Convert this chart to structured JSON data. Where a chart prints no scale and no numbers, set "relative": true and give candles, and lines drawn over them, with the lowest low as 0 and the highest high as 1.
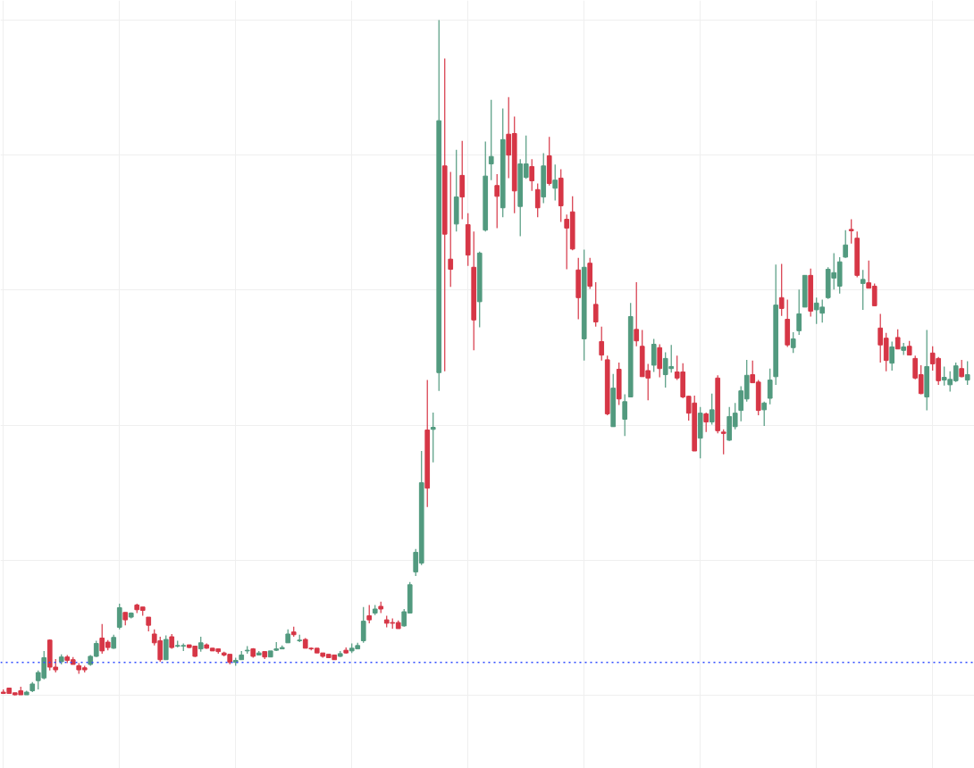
{
  "chart_data": {
    "type": "candlestick",
    "relative": true,
    "grid": true,
    "colors": [
      "#d63646",
      "#d63646",
      "#d63646",
      "#d63646",
      "#529a7f",
      "#529a7f",
      "#529a7f",
      "#529a7f",
      "#d63646",
      "#d63646",
      "#529a7f",
      "#d63646",
      "#d63646",
      "#d63646",
      "#d63646",
      "#529a7f",
      "#529a7f",
      "#d63646",
      "#d63646",
      "#529a7f",
      "#529a7f",
      "#d63646",
      "#529a7f",
      "#d63646",
      "#d63646",
      "#d63646",
      "#d63646",
      "#d63646",
      "#529a7f",
      "#d63646",
      "#529a7f",
      "#529a7f",
      "#d63646",
      "#d63646",
      "#529a7f",
      "#d63646",
      "#d63646",
      "#d63646",
      "#d63646",
      "#d63646",
      "#529a7f",
      "#529a7f",
      "#529a7f",
      "#d63646",
      "#529a7f",
      "#d63646",
      "#529a7f",
      "#529a7f",
      "#529a7f",
      "#529a7f",
      "#d63646",
      "#529a7f",
      "#d63646",
      "#d63646",
      "#d63646",
      "#d63646",
      "#d63646",
      "#d63646",
      "#529a7f",
      "#d63646",
      "#529a7f",
      "#529a7f",
      "#529a7f",
      "#d63646",
      "#529a7f",
      "#d63646",
      "#d63646",
      "#d63646",
      "#d63646",
      "#529a7f",
      "#529a7f",
      "#529a7f",
      "#529a7f",
      "#d63646",
      "#529a7f",
      "#529a7f",
      "#d63646",
      "#d63646",
      "#529a7f",
      "#d63646",
      "#d63646",
      "#d63646",
      "#529a7f",
      "#529a7f",
      "#529a7f",
      "#d63646",
      "#529a7f",
      "#d63646",
      "#d63646",
      "#529a7f",
      "#529a7f",
      "#d63646",
      "#d63646",
      "#529a7f",
      "#d63646",
      "#529a7f",
      "#d63646",
      "#d63646",
      "#d63646",
      "#d63646",
      "#529a7f",
      "#d63646",
      "#d63646",
      "#d63646",
      "#d63646",
      "#529a7f",
      "#d63646",
      "#529a7f",
      "#529a7f",
      "#d63646",
      "#d63646",
      "#d63646",
      "#529a7f",
      "#d63646",
      "#529a7f",
      "#529a7f",
      "#d63646",
      "#d63646",
      "#d63646",
      "#d63646",
      "#529a7f",
      "#d63646",
      "#529a7f",
      "#d63646",
      "#d63646",
      "#529a7f",
      "#529a7f",
      "#529a7f",
      "#529a7f",
      "#d63646",
      "#d63646",
      "#529a7f",
      "#529a7f",
      "#529a7f",
      "#d63646",
      "#d63646",
      "#529a7f",
      "#529a7f",
      "#529a7f",
      "#d63646",
      "#529a7f",
      "#529a7f",
      "#529a7f",
      "#529a7f",
      "#529a7f",
      "#529a7f",
      "#d63646",
      "#d63646",
      "#529a7f",
      "#d63646",
      "#d63646",
      "#d63646",
      "#d63646",
      "#529a7f",
      "#d63646",
      "#529a7f",
      "#d63646",
      "#d63646",
      "#d63646",
      "#529a7f",
      "#d63646",
      "#d63646",
      "#529a7f",
      "#529a7f",
      "#529a7f",
      "#d63646",
      "#529a7f"
    ],
    "categories": [
      null,
      null,
      null,
      null,
      null,
      null,
      null,
      null,
      null,
      null,
      null,
      null,
      null,
      null,
      null,
      null,
      null,
      null,
      null,
      null,
      null,
      null,
      null,
      null,
      null,
      null,
      null,
      null,
      null,
      null,
      null,
      null,
      null,
      null,
      null,
      null,
      null,
      null,
      null,
      null,
      null,
      null,
      null,
      null,
      null,
      null,
      null,
      null,
      null,
      null,
      null,
      null,
      null,
      null,
      null,
      null,
      null,
      null,
      null,
      null,
      null,
      null,
      null,
      null,
      null,
      null,
      null,
      null,
      null,
      null,
      null,
      null,
      null,
      null,
      null,
      null,
      null,
      null,
      null,
      null,
      null,
      null,
      null,
      null,
      null,
      null,
      null,
      null,
      null,
      null,
      null,
      null,
      null,
      null,
      null,
      null,
      null,
      null,
      null,
      null,
      null,
      null,
      null,
      null,
      null,
      null,
      null,
      null,
      null,
      null,
      null,
      null,
      null,
      null,
      null,
      null,
      null,
      null,
      null,
      null,
      null,
      null,
      null,
      null,
      null,
      null,
      null,
      null,
      null,
      null,
      null,
      null,
      null,
      null,
      null,
      null,
      null,
      null,
      null,
      null,
      null,
      null,
      null,
      null,
      null,
      null,
      null,
      null,
      null,
      null,
      null,
      null,
      null,
      null,
      null,
      null,
      null,
      null,
      null,
      null,
      null,
      null,
      null,
      null,
      null,
      null,
      null
    ],
    "ohlc": [
      [
        0.005,
        0.009,
        0.003,
        0.003
      ],
      [
        0.011,
        0.011,
        0.003,
        0.003
      ],
      [
        0.004,
        0.004,
        0,
        0.001
      ],
      [
        0.007,
        0.013,
        0.001,
        0.001
      ],
      [
        0.001,
        0.007,
        0.001,
        0.005
      ],
      [
        0.007,
        0.02,
        0.005,
        0.017
      ],
      [
        0.022,
        0.037,
        0.009,
        0.034
      ],
      [
        0.026,
        0.066,
        0.024,
        0.056
      ],
      [
        0.082,
        0.083,
        0.037,
        0.042
      ],
      [
        0.042,
        0.054,
        0.034,
        0.038
      ],
      [
        0.05,
        0.061,
        0.046,
        0.057
      ],
      [
        0.057,
        0.06,
        0.048,
        0.052
      ],
      [
        0.053,
        0.057,
        0.046,
        0.046
      ],
      [
        0.044,
        0.048,
        0.032,
        0.038
      ],
      [
        0.041,
        0.044,
        0.034,
        0.038
      ],
      [
        0.046,
        0.06,
        0.044,
        0.058
      ],
      [
        0.058,
        0.081,
        0.057,
        0.077
      ],
      [
        0.085,
        0.106,
        0.062,
        0.066
      ],
      [
        0.079,
        0.082,
        0.067,
        0.071
      ],
      [
        0.07,
        0.09,
        0.069,
        0.086
      ],
      [
        0.101,
        0.136,
        0.098,
        0.13
      ],
      [
        0.123,
        0.123,
        0.104,
        0.112
      ],
      [
        0.116,
        0.123,
        0.114,
        0.122
      ],
      [
        0.134,
        0.136,
        0.122,
        0.127
      ],
      [
        0.131,
        0.131,
        0.118,
        0.126
      ],
      [
        0.116,
        0.116,
        0.095,
        0.104
      ],
      [
        0.091,
        0.098,
        0.074,
        0.078
      ],
      [
        0.081,
        0.087,
        0.05,
        0.053
      ],
      [
        0.053,
        0.089,
        0.053,
        0.083
      ],
      [
        0.087,
        0.091,
        0.069,
        0.071
      ],
      [
        0.073,
        0.081,
        0.071,
        0.074
      ],
      [
        0.073,
        0.077,
        0.066,
        0.074
      ],
      [
        0.075,
        0.075,
        0.07,
        0.071
      ],
      [
        0.073,
        0.073,
        0.057,
        0.058
      ],
      [
        0.069,
        0.087,
        0.065,
        0.078
      ],
      [
        0.075,
        0.077,
        0.069,
        0.07
      ],
      [
        0.07,
        0.07,
        0.066,
        0.066
      ],
      [
        0.069,
        0.069,
        0.062,
        0.065
      ],
      [
        0.063,
        0.065,
        0.058,
        0.06
      ],
      [
        0.061,
        0.061,
        0.046,
        0.049
      ],
      [
        0.049,
        0.056,
        0.044,
        0.052
      ],
      [
        0.053,
        0.066,
        0.053,
        0.06
      ],
      [
        0.066,
        0.073,
        0.062,
        0.067
      ],
      [
        0.069,
        0.07,
        0.056,
        0.058
      ],
      [
        0.06,
        0.066,
        0.06,
        0.063
      ],
      [
        0.065,
        0.065,
        0.054,
        0.057
      ],
      [
        0.057,
        0.066,
        0.057,
        0.066
      ],
      [
        0.067,
        0.079,
        0.066,
        0.069
      ],
      [
        0.069,
        0.074,
        0.069,
        0.071
      ],
      [
        0.078,
        0.098,
        0.078,
        0.091
      ],
      [
        0.094,
        0.102,
        0.087,
        0.09
      ],
      [
        0.081,
        0.09,
        0.079,
        0.082
      ],
      [
        0.083,
        0.085,
        0.07,
        0.07
      ],
      [
        0.07,
        0.071,
        0.067,
        0.069
      ],
      [
        0.07,
        0.07,
        0.063,
        0.063
      ],
      [
        0.063,
        0.063,
        0.056,
        0.058
      ],
      [
        0.061,
        0.061,
        0.056,
        0.056
      ],
      [
        0.06,
        0.06,
        0.053,
        0.053
      ],
      [
        0.058,
        0.066,
        0.057,
        0.062
      ],
      [
        0.067,
        0.071,
        0.062,
        0.063
      ],
      [
        0.066,
        0.077,
        0.063,
        0.07
      ],
      [
        0.069,
        0.078,
        0.069,
        0.074
      ],
      [
        0.081,
        0.131,
        0.078,
        0.11
      ],
      [
        0.118,
        0.134,
        0.107,
        0.112
      ],
      [
        0.122,
        0.134,
        0.119,
        0.128
      ],
      [
        0.132,
        0.139,
        0.122,
        0.128
      ],
      [
        0.112,
        0.118,
        0.101,
        0.107
      ],
      [
        0.108,
        0.114,
        0.099,
        0.107
      ],
      [
        0.108,
        0.111,
        0.099,
        0.099
      ],
      [
        0.103,
        0.128,
        0.102,
        0.124
      ],
      [
        0.122,
        0.168,
        0.122,
        0.164
      ],
      [
        0.183,
        0.217,
        0.177,
        0.212
      ],
      [
        0.196,
        0.362,
        0.193,
        0.315
      ],
      [
        0.393,
        0.467,
        0.279,
        0.307
      ],
      [
        0.394,
        0.419,
        0.345,
        0.397
      ],
      [
        0.478,
        1,
        0.451,
        0.851
      ],
      [
        0.784,
        0.943,
        0.48,
        0.683
      ],
      [
        0.646,
        0.775,
        0.605,
        0.631
      ],
      [
        0.698,
        0.808,
        0.687,
        0.738
      ],
      [
        0.77,
        0.821,
        0.705,
        0.738
      ],
      [
        0.697,
        0.714,
        0.636,
        0.652
      ],
      [
        0.634,
        0.687,
        0.511,
        0.556
      ],
      [
        0.583,
        0.657,
        0.545,
        0.655
      ],
      [
        0.689,
        0.82,
        0.687,
        0.769
      ],
      [
        0.787,
        0.882,
        0.763,
        0.798
      ],
      [
        0.755,
        0.772,
        0.692,
        0.739
      ],
      [
        0.722,
        0.869,
        0.708,
        0.823
      ],
      [
        0.831,
        0.886,
        0.766,
        0.8
      ],
      [
        0.832,
        0.857,
        0.714,
        0.747
      ],
      [
        0.724,
        0.794,
        0.68,
        0.787
      ],
      [
        0.767,
        0.829,
        0.765,
        0.787
      ],
      [
        0.783,
        0.794,
        0.747,
        0.762
      ],
      [
        0.749,
        0.758,
        0.708,
        0.722
      ],
      [
        0.738,
        0.803,
        0.729,
        0.784
      ],
      [
        0.799,
        0.827,
        0.755,
        0.758
      ],
      [
        0.751,
        0.786,
        0.733,
        0.763
      ],
      [
        0.766,
        0.779,
        0.701,
        0.725
      ],
      [
        0.705,
        0.712,
        0.631,
        0.692
      ],
      [
        0.716,
        0.739,
        0.659,
        0.661
      ],
      [
        0.63,
        0.648,
        0.557,
        0.589
      ],
      [
        0.528,
        0.66,
        0.496,
        0.634
      ],
      [
        0.64,
        0.648,
        0.602,
        0.606
      ],
      [
        0.579,
        0.612,
        0.546,
        0.553
      ],
      [
        0.524,
        0.546,
        0.496,
        0.504
      ],
      [
        0.497,
        0.503,
        0.415,
        0.417
      ],
      [
        0.398,
        0.476,
        0.398,
        0.455
      ],
      [
        0.483,
        0.493,
        0.43,
        0.439
      ],
      [
        0.409,
        0.446,
        0.384,
        0.435
      ],
      [
        0.442,
        0.581,
        0.442,
        0.561
      ],
      [
        0.542,
        0.612,
        0.517,
        0.525
      ],
      [
        0.517,
        0.541,
        0.472,
        0.472
      ],
      [
        0.481,
        0.491,
        0.437,
        0.47
      ],
      [
        0.489,
        0.528,
        0.479,
        0.52
      ],
      [
        0.515,
        0.52,
        0.471,
        0.484
      ],
      [
        0.475,
        0.508,
        0.456,
        0.499
      ],
      [
        0.484,
        0.519,
        0.478,
        0.487
      ],
      [
        0.479,
        0.503,
        0.467,
        0.47
      ],
      [
        0.479,
        0.492,
        0.44,
        0.442
      ],
      [
        0.443,
        0.444,
        0.407,
        0.418
      ],
      [
        0.433,
        0.444,
        0.362,
        0.362
      ],
      [
        0.381,
        0.427,
        0.351,
        0.418
      ],
      [
        0.417,
        0.419,
        0.39,
        0.405
      ],
      [
        0.405,
        0.447,
        0.401,
        0.423
      ],
      [
        0.47,
        0.474,
        0.388,
        0.392
      ],
      [
        0.39,
        0.394,
        0.357,
        0.388
      ],
      [
        0.378,
        0.427,
        0.377,
        0.413
      ],
      [
        0.398,
        0.433,
        0.394,
        0.418
      ],
      [
        0.422,
        0.458,
        0.406,
        0.451
      ],
      [
        0.439,
        0.497,
        0.435,
        0.474
      ],
      [
        0.475,
        0.496,
        0.463,
        0.463
      ],
      [
        0.464,
        0.467,
        0.415,
        0.422
      ],
      [
        0.423,
        0.435,
        0.399,
        0.433
      ],
      [
        0.44,
        0.484,
        0.431,
        0.467
      ],
      [
        0.472,
        0.638,
        0.46,
        0.578
      ],
      [
        0.589,
        0.639,
        0.562,
        0.573
      ],
      [
        0.557,
        0.586,
        0.516,
        0.519
      ],
      [
        0.515,
        0.538,
        0.507,
        0.528
      ],
      [
        0.54,
        0.601,
        0.534,
        0.565
      ],
      [
        0.575,
        0.622,
        0.575,
        0.622
      ],
      [
        0.622,
        0.632,
        0.561,
        0.569
      ],
      [
        0.571,
        0.589,
        0.55,
        0.581
      ],
      [
        0.566,
        0.586,
        0.552,
        0.575
      ],
      [
        0.589,
        0.634,
        0.587,
        0.631
      ],
      [
        0.618,
        0.655,
        0.601,
        0.626
      ],
      [
        0.606,
        0.649,
        0.595,
        0.642
      ],
      [
        0.649,
        0.689,
        0.648,
        0.667
      ],
      [
        0.69,
        0.705,
        0.669,
        0.688
      ],
      [
        0.677,
        0.687,
        0.619,
        0.622
      ],
      [
        0.61,
        0.63,
        0.571,
        0.616
      ],
      [
        0.611,
        0.644,
        0.603,
        0.603
      ],
      [
        0.606,
        0.61,
        0.577,
        0.577
      ],
      [
        0.544,
        0.565,
        0.493,
        0.519
      ],
      [
        0.529,
        0.537,
        0.48,
        0.496
      ],
      [
        0.492,
        0.524,
        0.481,
        0.516
      ],
      [
        0.53,
        0.542,
        0.513,
        0.513
      ],
      [
        0.511,
        0.522,
        0.504,
        0.516
      ],
      [
        0.517,
        0.525,
        0.504,
        0.504
      ],
      [
        0.499,
        0.503,
        0.468,
        0.47
      ],
      [
        0.475,
        0.489,
        0.446,
        0.447
      ],
      [
        0.442,
        0.541,
        0.422,
        0.487
      ],
      [
        0.507,
        0.517,
        0.481,
        0.491
      ],
      [
        0.499,
        0.501,
        0.46,
        0.466
      ],
      [
        0.467,
        0.487,
        0.459,
        0.471
      ],
      [
        0.46,
        0.48,
        0.45,
        0.468
      ],
      [
        0.466,
        0.493,
        0.464,
        0.488
      ],
      [
        0.484,
        0.497,
        0.471,
        0.472
      ],
      [
        0.467,
        0.495,
        0.46,
        0.475
      ]
    ],
    "ref_lines": [
      {
        "axis": "y",
        "value": 0.049,
        "color": "#2f4bff",
        "line_style": "dotted"
      }
    ]
  }
}
